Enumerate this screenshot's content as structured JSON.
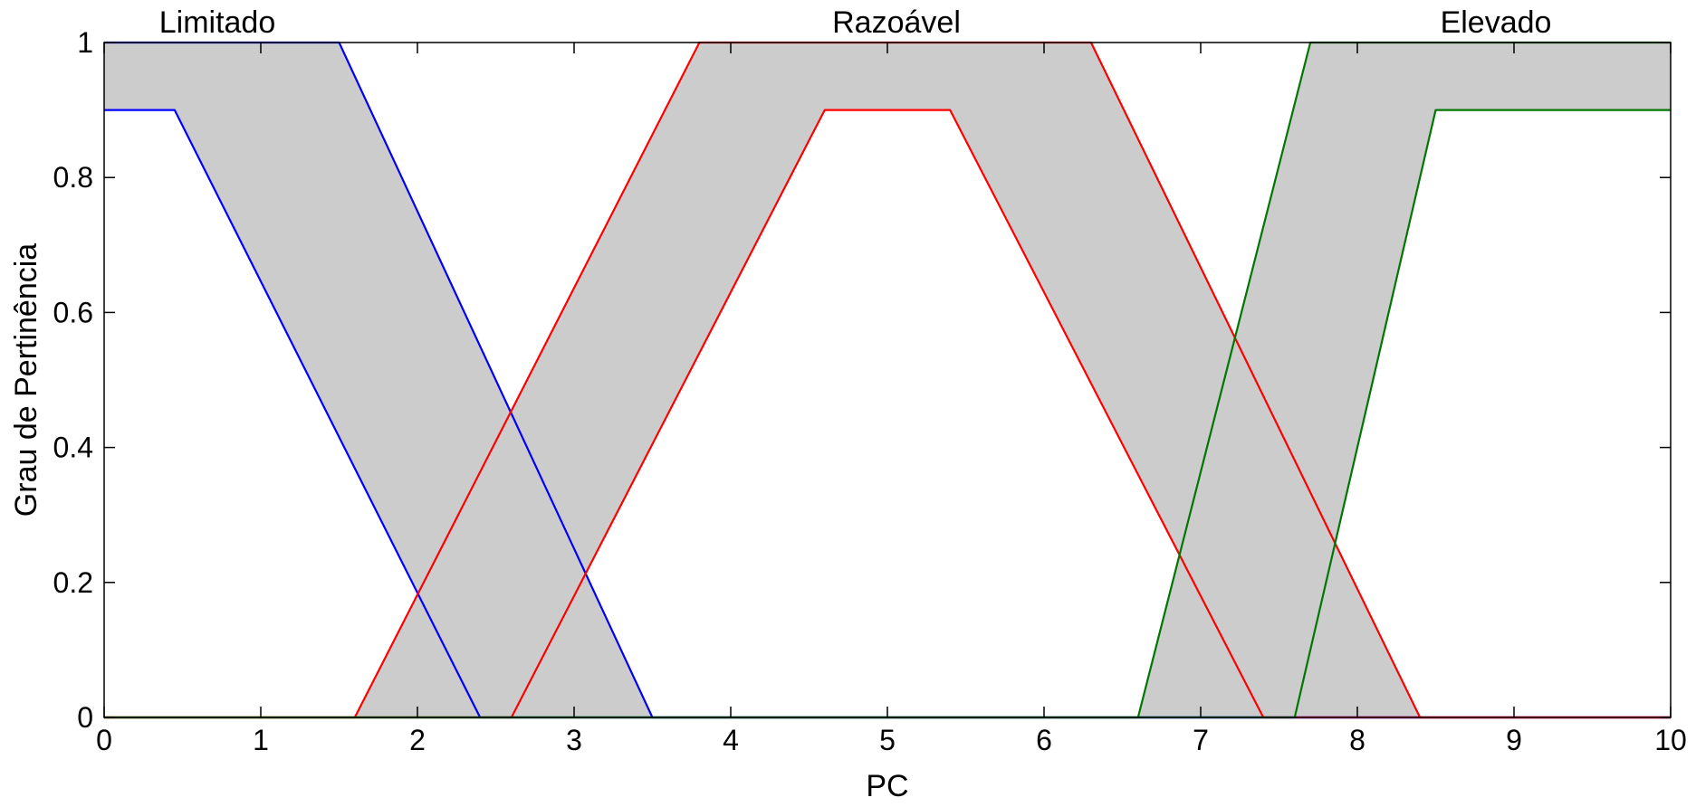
{
  "chart_data": {
    "type": "area",
    "title": "",
    "xlabel": "PC",
    "ylabel": "Grau de Pertinência",
    "xlim": [
      0,
      10
    ],
    "ylim": [
      0,
      1
    ],
    "xticks": [
      "0",
      "1",
      "2",
      "3",
      "4",
      "5",
      "6",
      "7",
      "8",
      "9",
      "10"
    ],
    "yticks": [
      "0",
      "0.2",
      "0.4",
      "0.6",
      "0.8",
      "1"
    ],
    "grid": false,
    "band_color": "#cccccc",
    "sets": [
      {
        "name": "Limitado",
        "color": "#0000ff",
        "upper": [
          [
            0,
            1
          ],
          [
            1.5,
            1
          ],
          [
            3.5,
            0
          ],
          [
            10,
            0
          ]
        ],
        "lower": [
          [
            0,
            0.9
          ],
          [
            0.45,
            0.9
          ],
          [
            2.4,
            0
          ],
          [
            10,
            0
          ]
        ]
      },
      {
        "name": "Razoável",
        "color": "#ff0000",
        "upper": [
          [
            0,
            0
          ],
          [
            1.6,
            0
          ],
          [
            3.8,
            1
          ],
          [
            6.3,
            1
          ],
          [
            8.4,
            0
          ],
          [
            10,
            0
          ]
        ],
        "lower": [
          [
            0,
            0
          ],
          [
            2.6,
            0
          ],
          [
            4.6,
            0.9
          ],
          [
            5.4,
            0.9
          ],
          [
            7.4,
            0
          ],
          [
            10,
            0
          ]
        ]
      },
      {
        "name": "Elevado",
        "color": "#007700",
        "upper": [
          [
            0,
            0
          ],
          [
            6.6,
            0
          ],
          [
            7.7,
            1
          ],
          [
            10,
            1
          ]
        ],
        "lower": [
          [
            0,
            0
          ],
          [
            7.6,
            0
          ],
          [
            8.5,
            0.9
          ],
          [
            10,
            0.9
          ]
        ]
      }
    ]
  }
}
